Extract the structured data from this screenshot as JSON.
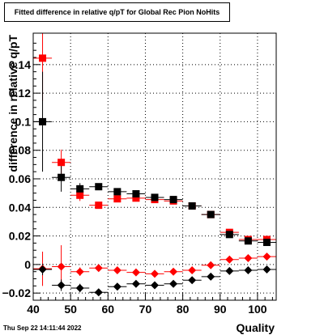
{
  "chart_data": {
    "type": "scatter",
    "title": "Fitted difference in relative q/pT for Global Rec Pion NoHits",
    "xlabel": "Quality",
    "ylabel": "difference in relative q/pT",
    "xlim": [
      40,
      105
    ],
    "ylim": [
      -0.025,
      0.162
    ],
    "x_ticks": [
      40,
      50,
      60,
      70,
      80,
      90,
      100
    ],
    "y_ticks": [
      -0.02,
      0,
      0.02,
      0.04,
      0.06,
      0.08,
      0.1,
      0.12,
      0.14
    ],
    "y_tick_labels": [
      "−0.02",
      "0",
      "0.02",
      "0.04",
      "0.06",
      "0.08",
      "0.1",
      "0.12",
      "0.14"
    ],
    "grid": true,
    "series": [
      {
        "marker": "square",
        "color": "#ff0000",
        "x": [
          42.5,
          47.5,
          52.5,
          57.5,
          62.5,
          67.5,
          72.5,
          77.5,
          82.5,
          87.5,
          92.5,
          97.5,
          102.5
        ],
        "y": [
          0.1445,
          0.0715,
          0.0485,
          0.0415,
          0.046,
          0.0465,
          0.0455,
          0.0445,
          0.041,
          0.035,
          0.0225,
          0.0175,
          0.0175
        ],
        "yerr": [
          0.03,
          0.009,
          0.004,
          0.002,
          0.002,
          0.002,
          0.002,
          0.002,
          0.002,
          0.002,
          0.002,
          0.002,
          0.002
        ]
      },
      {
        "marker": "square",
        "color": "#000000",
        "x": [
          42.5,
          47.5,
          52.5,
          57.5,
          62.5,
          67.5,
          72.5,
          77.5,
          82.5,
          87.5,
          92.5,
          97.5,
          102.5
        ],
        "y": [
          0.1,
          0.061,
          0.053,
          0.0545,
          0.051,
          0.0495,
          0.047,
          0.0455,
          0.041,
          0.035,
          0.021,
          0.0165,
          0.0155
        ],
        "yerr": [
          0.035,
          0.01,
          0.004,
          0.002,
          0.002,
          0.002,
          0.002,
          0.002,
          0.002,
          0.002,
          0.002,
          0.002,
          0.002
        ]
      },
      {
        "marker": "diamond",
        "color": "#ff0000",
        "x": [
          42.5,
          47.5,
          52.5,
          57.5,
          62.5,
          67.5,
          72.5,
          77.5,
          82.5,
          87.5,
          92.5,
          97.5,
          102.5
        ],
        "y": [
          -0.003,
          -0.0015,
          -0.005,
          -0.0025,
          -0.004,
          -0.0055,
          -0.0065,
          -0.005,
          -0.004,
          -0.0005,
          0.0035,
          0.0045,
          0.0055
        ],
        "yerr": [
          0.012,
          0.015,
          0.003,
          0.002,
          0.002,
          0.002,
          0.002,
          0.002,
          0.002,
          0.002,
          0.002,
          0.002,
          0.002
        ]
      },
      {
        "marker": "diamond",
        "color": "#000000",
        "x": [
          42.5,
          47.5,
          52.5,
          57.5,
          62.5,
          67.5,
          72.5,
          77.5,
          82.5,
          87.5,
          92.5,
          97.5,
          102.5
        ],
        "y": [
          -0.0035,
          -0.0145,
          -0.0165,
          -0.0195,
          -0.0155,
          -0.0135,
          -0.0145,
          -0.0135,
          -0.011,
          -0.0085,
          -0.0045,
          -0.004,
          -0.0035
        ],
        "yerr": [
          0.004,
          0.004,
          0.003,
          0.002,
          0.002,
          0.002,
          0.002,
          0.002,
          0.002,
          0.002,
          0.002,
          0.002,
          0.002
        ]
      }
    ],
    "footer": "Thu Sep 22 14:11:44 2022"
  }
}
